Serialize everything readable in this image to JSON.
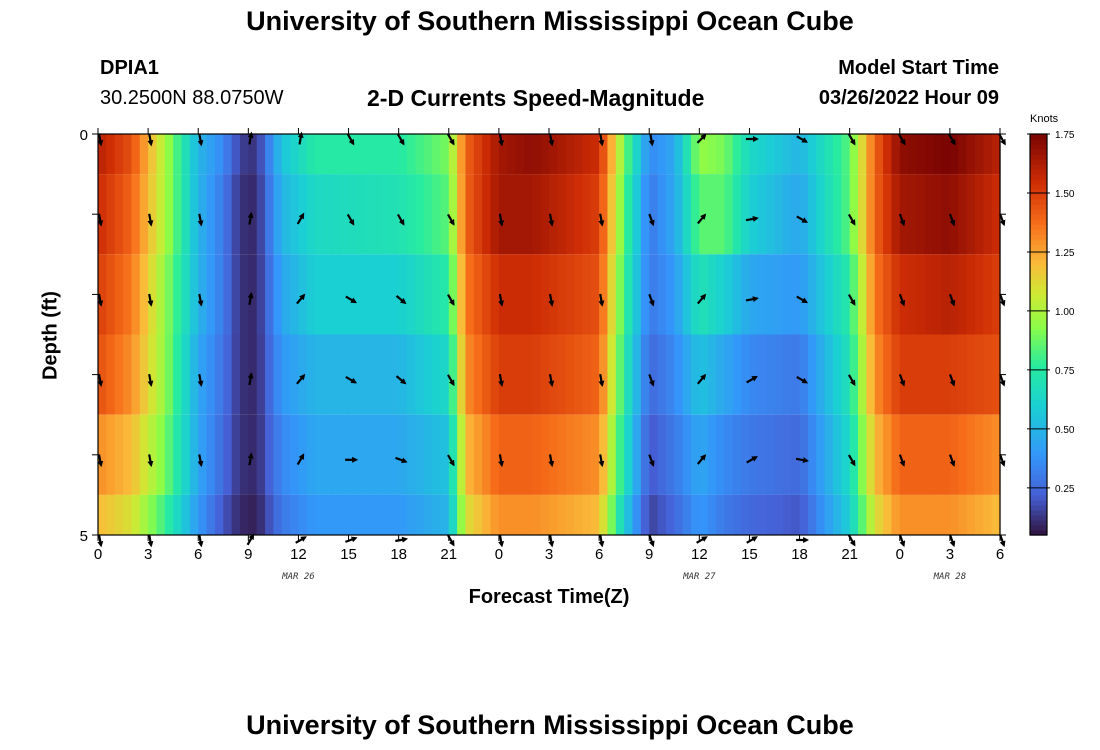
{
  "header": {
    "title": "University of Southern Mississippi Ocean Cube",
    "station_id": "DPIA1",
    "coords": "30.2500N  88.0750W",
    "plot_title": "2-D Currents Speed-Magnitude",
    "model_start_label": "Model Start Time",
    "model_start_value": "03/26/2022 Hour 09"
  },
  "footer": {
    "title": "University of Southern Mississippi Ocean Cube"
  },
  "colors": {
    "low": "#30123b",
    "mid": "#1ae4b6",
    "high": "#7a0403"
  },
  "chart_data": {
    "type": "heatmap",
    "title": "2-D Currents Speed-Magnitude",
    "xlabel": "Forecast Time(Z)",
    "ylabel": "Depth (ft)",
    "x_tick_labels": [
      "0",
      "3",
      "6",
      "9",
      "12",
      "15",
      "18",
      "21",
      "0",
      "3",
      "6",
      "9",
      "12",
      "15",
      "18",
      "21",
      "0",
      "3",
      "6"
    ],
    "x_hours": [
      0,
      3,
      6,
      9,
      12,
      15,
      18,
      21,
      24,
      27,
      30,
      33,
      36,
      39,
      42,
      45,
      48,
      51,
      54
    ],
    "xlim": [
      0,
      54
    ],
    "day_labels": [
      {
        "label": "MAR 26",
        "hour": 12
      },
      {
        "label": "MAR 27",
        "hour": 36
      },
      {
        "label": "MAR 28",
        "hour": 51
      }
    ],
    "y_tick_labels": [
      "0",
      "5"
    ],
    "ylim": [
      0,
      5
    ],
    "depth_levels": [
      0,
      1,
      2,
      3,
      4,
      5
    ],
    "colorbar": {
      "label": "Knots",
      "ticks": [
        "0.25",
        "0.50",
        "0.75",
        "1.00",
        "1.25",
        "1.50",
        "1.75"
      ],
      "tick_values": [
        0.25,
        0.5,
        0.75,
        1.0,
        1.25,
        1.5,
        1.75
      ],
      "range": [
        0.05,
        1.75
      ]
    },
    "speed_profile_by_depth": {
      "hours": [
        0,
        2,
        4,
        6,
        7.5,
        8.5,
        9.5,
        11,
        13,
        18,
        21,
        22,
        24,
        26,
        30,
        31.5,
        33,
        34.5,
        36,
        37.5,
        39,
        42,
        45,
        46.5,
        48,
        51,
        54
      ],
      "depth_0": [
        1.6,
        1.45,
        1.0,
        0.5,
        0.35,
        0.15,
        0.12,
        0.55,
        0.75,
        0.75,
        0.9,
        1.4,
        1.65,
        1.7,
        1.55,
        0.9,
        0.35,
        0.45,
        0.95,
        0.9,
        0.65,
        0.5,
        0.85,
        1.4,
        1.7,
        1.75,
        1.6
      ],
      "depth_1": [
        1.55,
        1.4,
        1.0,
        0.5,
        0.3,
        0.12,
        0.1,
        0.5,
        0.65,
        0.7,
        0.85,
        1.4,
        1.65,
        1.65,
        1.5,
        0.85,
        0.3,
        0.45,
        0.85,
        0.85,
        0.6,
        0.45,
        0.85,
        1.4,
        1.65,
        1.7,
        1.55
      ],
      "depth_2": [
        1.5,
        1.35,
        0.95,
        0.5,
        0.3,
        0.12,
        0.1,
        0.45,
        0.6,
        0.6,
        0.75,
        1.35,
        1.55,
        1.55,
        1.45,
        0.8,
        0.3,
        0.4,
        0.7,
        0.6,
        0.45,
        0.4,
        0.75,
        1.35,
        1.55,
        1.6,
        1.5
      ],
      "depth_3": [
        1.45,
        1.3,
        0.95,
        0.45,
        0.28,
        0.12,
        0.1,
        0.4,
        0.5,
        0.5,
        0.65,
        1.3,
        1.5,
        1.5,
        1.4,
        0.75,
        0.25,
        0.35,
        0.55,
        0.45,
        0.35,
        0.3,
        0.7,
        1.3,
        1.5,
        1.5,
        1.45
      ],
      "depth_4": [
        1.3,
        1.2,
        0.9,
        0.45,
        0.25,
        0.12,
        0.1,
        0.35,
        0.45,
        0.45,
        0.55,
        1.2,
        1.4,
        1.4,
        1.3,
        0.7,
        0.2,
        0.3,
        0.45,
        0.35,
        0.3,
        0.25,
        0.65,
        1.2,
        1.4,
        1.4,
        1.3
      ],
      "depth_5": [
        1.2,
        1.1,
        0.8,
        0.4,
        0.2,
        0.1,
        0.08,
        0.3,
        0.4,
        0.4,
        0.5,
        1.1,
        1.3,
        1.3,
        1.2,
        0.6,
        0.15,
        0.25,
        0.4,
        0.3,
        0.25,
        0.2,
        0.6,
        1.1,
        1.3,
        1.3,
        1.2
      ]
    },
    "vector_direction_deg_by_depth": {
      "hours": [
        0,
        3,
        6,
        9,
        12,
        15,
        18,
        21,
        24,
        27,
        30,
        33,
        36,
        39,
        42,
        45,
        48,
        51,
        54
      ],
      "depth_0": [
        170,
        170,
        170,
        10,
        10,
        150,
        150,
        150,
        170,
        170,
        170,
        170,
        45,
        90,
        120,
        150,
        150,
        150,
        150
      ],
      "depth_1": [
        170,
        170,
        170,
        10,
        30,
        150,
        150,
        150,
        170,
        170,
        170,
        160,
        40,
        80,
        120,
        150,
        160,
        160,
        160
      ],
      "depth_2": [
        170,
        170,
        170,
        10,
        40,
        120,
        130,
        150,
        170,
        170,
        170,
        160,
        40,
        80,
        120,
        150,
        160,
        160,
        160
      ],
      "depth_3": [
        170,
        170,
        170,
        10,
        40,
        120,
        130,
        150,
        170,
        170,
        170,
        160,
        40,
        60,
        120,
        150,
        160,
        160,
        160
      ],
      "depth_4": [
        170,
        170,
        170,
        10,
        30,
        90,
        110,
        150,
        170,
        170,
        170,
        160,
        40,
        60,
        100,
        150,
        160,
        160,
        160
      ],
      "depth_5": [
        170,
        170,
        170,
        30,
        60,
        70,
        80,
        150,
        170,
        170,
        170,
        160,
        60,
        60,
        90,
        150,
        160,
        160,
        160
      ]
    }
  }
}
